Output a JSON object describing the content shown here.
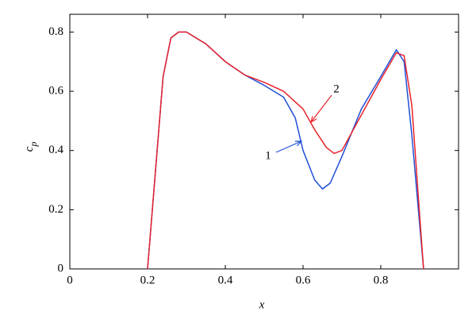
{
  "chart_data": {
    "type": "line",
    "xlabel": "x",
    "ylabel": "c",
    "ylabel_subscript": "p",
    "xlim": [
      0,
      1
    ],
    "ylim": [
      0,
      0.86
    ],
    "xticks": [
      0,
      0.2,
      0.4,
      0.6,
      0.8
    ],
    "yticks": [
      0,
      0.2,
      0.4,
      0.6,
      0.8
    ],
    "series": [
      {
        "name": "1",
        "color": "#1f4fd6",
        "x": [
          0.2,
          0.24,
          0.26,
          0.28,
          0.3,
          0.35,
          0.4,
          0.45,
          0.5,
          0.55,
          0.58,
          0.6,
          0.63,
          0.65,
          0.67,
          0.7,
          0.75,
          0.8,
          0.84,
          0.86,
          0.88,
          0.9,
          0.91
        ],
        "values": [
          0,
          0.65,
          0.78,
          0.8,
          0.8,
          0.76,
          0.7,
          0.655,
          0.62,
          0.58,
          0.51,
          0.4,
          0.3,
          0.27,
          0.29,
          0.38,
          0.54,
          0.65,
          0.74,
          0.7,
          0.45,
          0.15,
          0
        ]
      },
      {
        "name": "2",
        "color": "#e8232a",
        "x": [
          0.2,
          0.24,
          0.26,
          0.28,
          0.3,
          0.35,
          0.4,
          0.45,
          0.5,
          0.55,
          0.6,
          0.63,
          0.66,
          0.68,
          0.7,
          0.75,
          0.8,
          0.84,
          0.86,
          0.88,
          0.9,
          0.91
        ],
        "values": [
          0,
          0.65,
          0.78,
          0.8,
          0.8,
          0.76,
          0.7,
          0.655,
          0.63,
          0.6,
          0.54,
          0.47,
          0.41,
          0.39,
          0.4,
          0.52,
          0.64,
          0.73,
          0.72,
          0.55,
          0.18,
          0
        ]
      }
    ]
  }
}
